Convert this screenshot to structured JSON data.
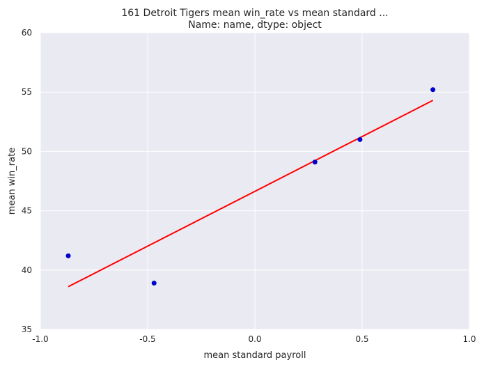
{
  "chart_data": {
    "type": "scatter",
    "title": "161    Detroit Tigers mean win_rate vs mean standard ...",
    "subtitle": "Name: name, dtype: object",
    "xlabel": "mean standard payroll",
    "ylabel": "mean win_rate",
    "xlim": [
      -1.0,
      1.0
    ],
    "ylim": [
      35,
      60
    ],
    "xticks": [
      "-1.0",
      "-0.5",
      "0.0",
      "0.5",
      "1.0"
    ],
    "yticks": [
      "35",
      "40",
      "45",
      "50",
      "55",
      "60"
    ],
    "grid": true,
    "points": [
      {
        "x": -0.87,
        "y": 41.2
      },
      {
        "x": -0.47,
        "y": 38.9
      },
      {
        "x": 0.28,
        "y": 49.1
      },
      {
        "x": 0.49,
        "y": 51.0
      },
      {
        "x": 0.83,
        "y": 55.2
      }
    ],
    "fit_line": {
      "x": [
        -0.87,
        0.83
      ],
      "y": [
        38.6,
        54.3
      ]
    },
    "colors": {
      "background": "#eaeaf2",
      "grid": "#ffffff",
      "points": "#0000cc",
      "fit_line": "#ff0000"
    }
  }
}
